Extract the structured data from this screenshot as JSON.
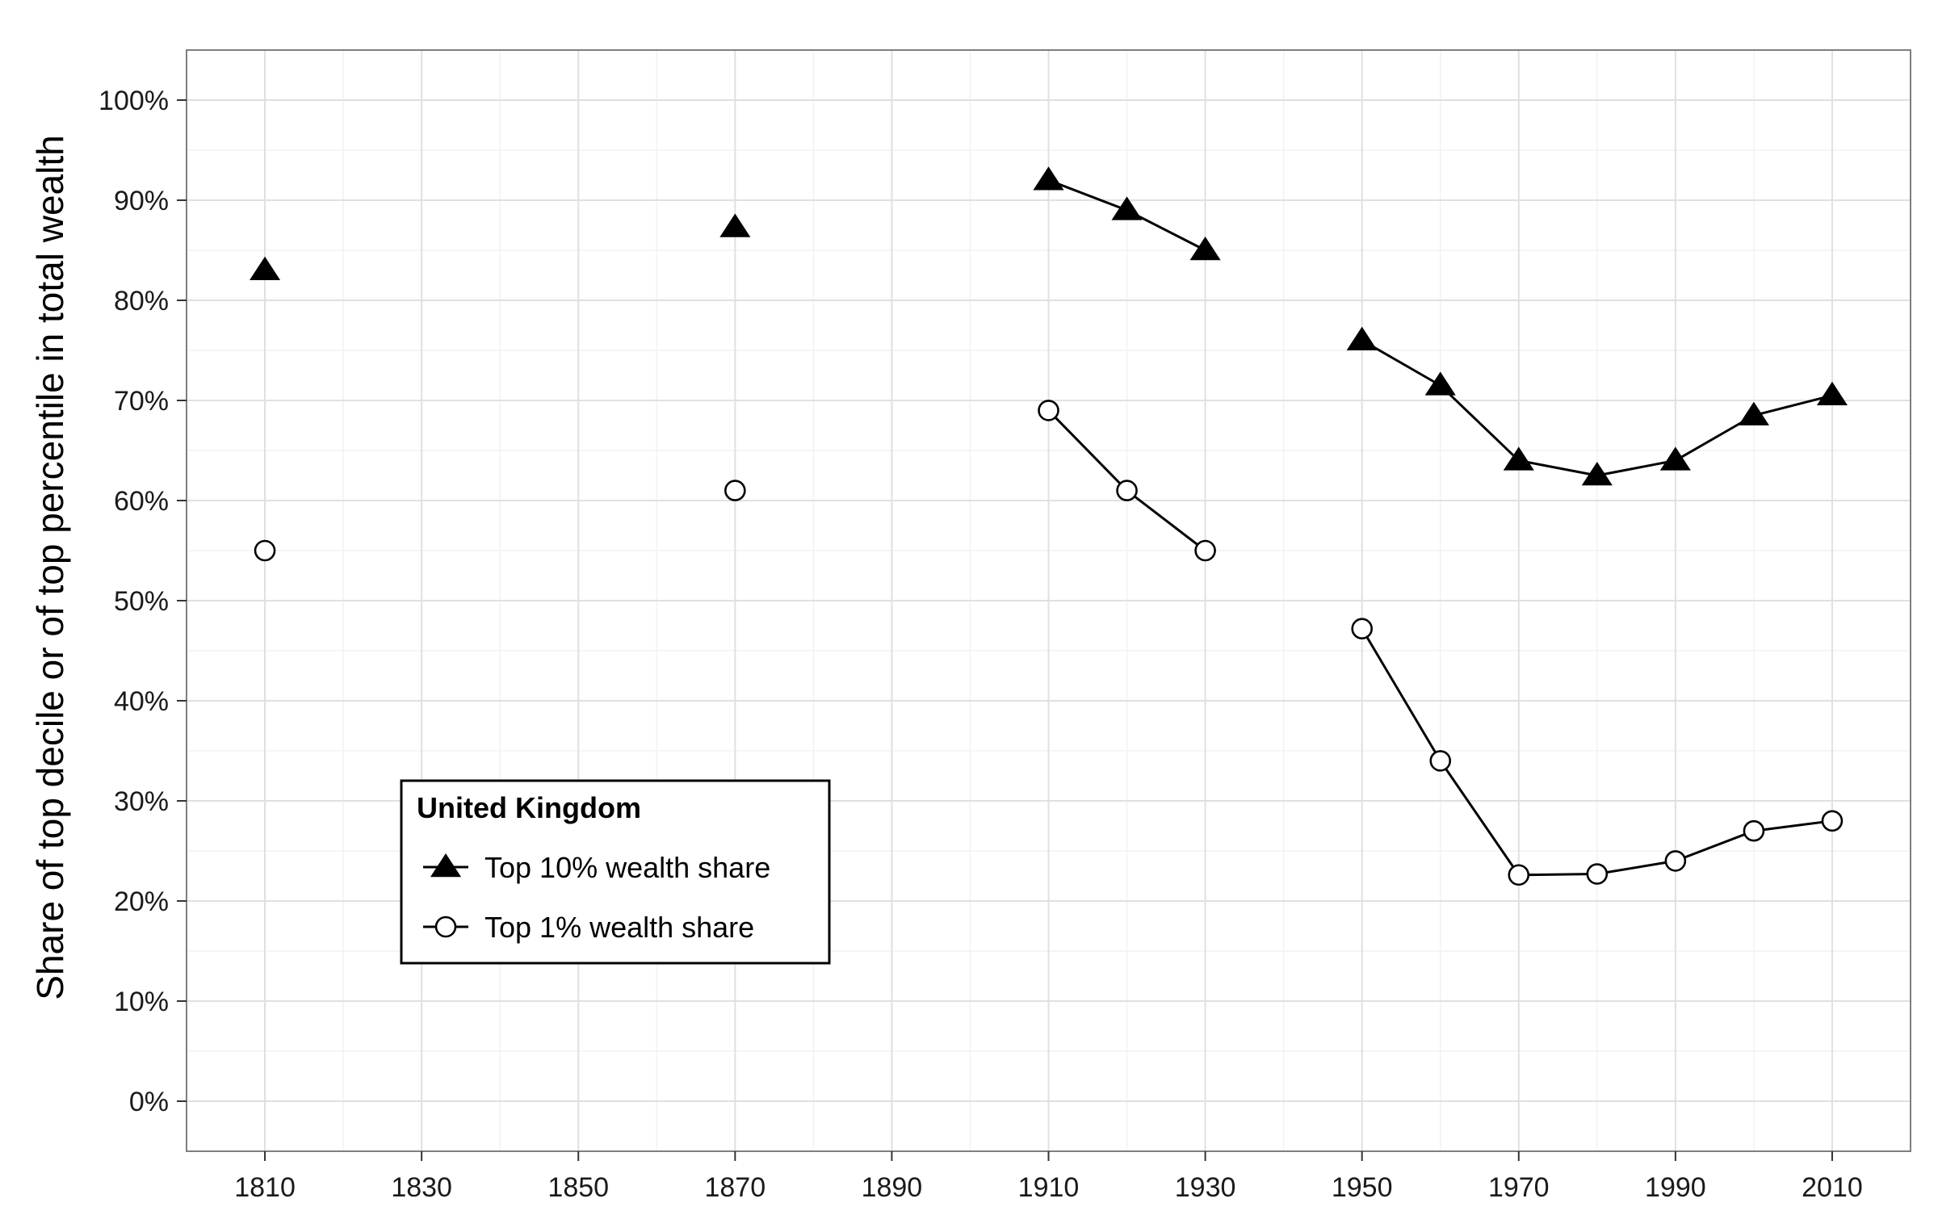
{
  "chart_data": {
    "type": "line",
    "title": "",
    "xlabel": "",
    "ylabel": "Share of top decile or of top percentile in total wealth",
    "xlim": [
      1800,
      2020
    ],
    "ylim": [
      -5,
      105
    ],
    "x_ticks": [
      1810,
      1830,
      1850,
      1870,
      1890,
      1910,
      1930,
      1950,
      1970,
      1990,
      2010
    ],
    "x_tick_labels": [
      "1810",
      "1830",
      "1850",
      "1870",
      "1890",
      "1910",
      "1930",
      "1950",
      "1970",
      "1990",
      "2010"
    ],
    "y_ticks": [
      0,
      10,
      20,
      30,
      40,
      50,
      60,
      70,
      80,
      90,
      100
    ],
    "y_tick_labels": [
      "0%",
      "10%",
      "20%",
      "30%",
      "40%",
      "50%",
      "60%",
      "70%",
      "80%",
      "90%",
      "100%"
    ],
    "grid": true,
    "legend": {
      "title": "United Kingdom",
      "placement": "bottom-left"
    },
    "series": [
      {
        "name": "Top 10% wealth share",
        "marker": "filled-triangle",
        "color": "#000000",
        "segments": [
          [
            [
              1810,
              83
            ]
          ],
          [
            [
              1870,
              87.3
            ]
          ],
          [
            [
              1910,
              92
            ],
            [
              1920,
              89
            ],
            [
              1930,
              85
            ]
          ],
          [
            [
              1950,
              76
            ],
            [
              1960,
              71.5
            ],
            [
              1970,
              64
            ],
            [
              1980,
              62.5
            ],
            [
              1990,
              64
            ],
            [
              2000,
              68.5
            ],
            [
              2010,
              70.5
            ]
          ]
        ]
      },
      {
        "name": "Top 1% wealth share",
        "marker": "open-circle",
        "color": "#000000",
        "segments": [
          [
            [
              1810,
              55
            ]
          ],
          [
            [
              1870,
              61
            ]
          ],
          [
            [
              1910,
              69
            ],
            [
              1920,
              61
            ],
            [
              1930,
              55
            ]
          ],
          [
            [
              1950,
              47.2
            ],
            [
              1960,
              34
            ],
            [
              1970,
              22.6
            ],
            [
              1980,
              22.7
            ],
            [
              1990,
              24
            ],
            [
              2000,
              27
            ],
            [
              2010,
              28
            ]
          ]
        ]
      }
    ]
  }
}
